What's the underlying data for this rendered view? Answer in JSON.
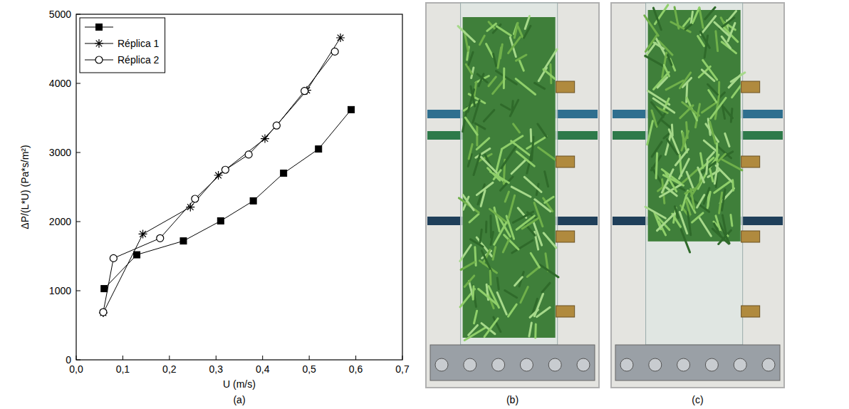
{
  "chart_data": {
    "type": "line",
    "x_label": "U (m/s)",
    "y_label": "ΔP/(L*U) (Pa*s/m²)",
    "panel": "(a)",
    "xlim": [
      0,
      0.7
    ],
    "xticks": [
      {
        "value": 0,
        "label": "0,0"
      },
      {
        "value": 0.1,
        "label": "0,1"
      },
      {
        "value": 0.2,
        "label": "0,2"
      },
      {
        "value": 0.3,
        "label": "0,3"
      },
      {
        "value": 0.4,
        "label": "0,4"
      },
      {
        "value": 0.5,
        "label": "0,5"
      },
      {
        "value": 0.6,
        "label": "0,6"
      },
      {
        "value": 0.7,
        "label": "0,7"
      }
    ],
    "ylim": [
      0,
      5000
    ],
    "yticks": [
      0,
      1000,
      2000,
      3000,
      4000,
      5000
    ],
    "legend": "upper left",
    "series": [
      {
        "color": "#000000",
        "marker": "square",
        "line_style": "solid",
        "x": [
          0.06,
          0.13,
          0.23,
          0.31,
          0.38,
          0.445,
          0.52,
          0.59
        ],
        "values": [
          1030,
          1520,
          1720,
          2010,
          2300,
          2700,
          3050,
          3620
        ]
      },
      {
        "name": "Réplica 1",
        "color": "#000000",
        "marker": "asterisk",
        "line_style": "solid",
        "x": [
          0.058,
          0.143,
          0.245,
          0.305,
          0.405,
          0.495,
          0.567
        ],
        "values": [
          680,
          1820,
          2210,
          2670,
          3200,
          3900,
          4660
        ]
      },
      {
        "name": "Réplica 2",
        "color": "#000000",
        "marker": "circle",
        "line_style": "solid",
        "x": [
          0.058,
          0.08,
          0.18,
          0.255,
          0.32,
          0.37,
          0.43,
          0.49,
          0.555
        ],
        "values": [
          690,
          1470,
          1760,
          2330,
          2750,
          2970,
          3390,
          3890,
          4460
        ]
      }
    ]
  },
  "photos": {
    "labels": [
      "(b)",
      "(c)"
    ]
  }
}
